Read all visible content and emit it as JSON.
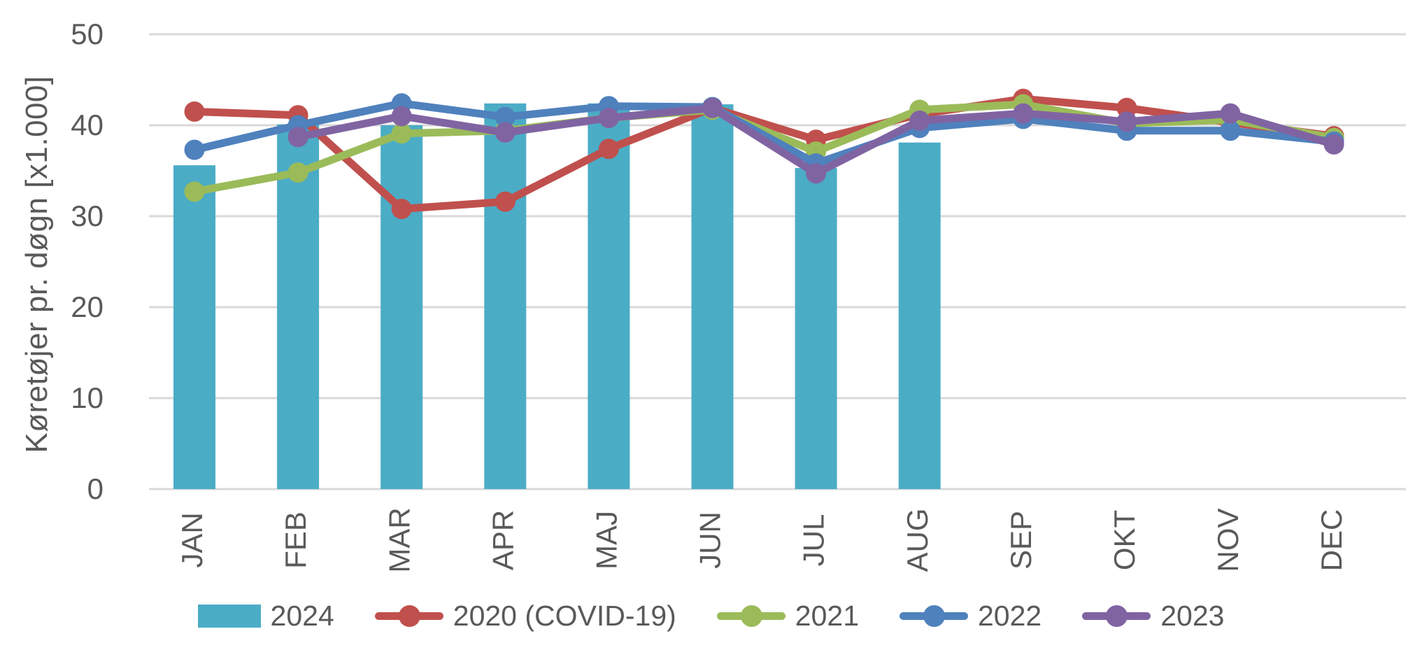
{
  "chart_data": {
    "type": "combo",
    "title": "",
    "xlabel": "",
    "ylabel": "Køretøjer pr. døgn [x1.000]",
    "ylim": [
      0,
      50
    ],
    "yticks": [
      0,
      10,
      20,
      30,
      40,
      50
    ],
    "grid": true,
    "legend_position": "bottom",
    "categories": [
      "JAN",
      "FEB",
      "MAR",
      "APR",
      "MAJ",
      "JUN",
      "JUL",
      "AUG",
      "SEP",
      "OKT",
      "NOV",
      "DEC"
    ],
    "series": [
      {
        "name": "2024",
        "type": "bar",
        "color": "#4BACC6",
        "values": [
          35.6,
          40.1,
          40.0,
          42.4,
          42.4,
          42.3,
          35.3,
          38.1,
          null,
          null,
          null,
          null
        ]
      },
      {
        "name": "2020 (COVID-19)",
        "type": "line",
        "color": "#C0504D",
        "values": [
          41.5,
          41.1,
          30.8,
          31.6,
          37.4,
          41.9,
          38.4,
          41.2,
          42.9,
          41.9,
          40.3,
          38.8
        ]
      },
      {
        "name": "2021",
        "type": "line",
        "color": "#9BBB59",
        "values": [
          32.7,
          34.8,
          39.1,
          39.4,
          40.8,
          41.7,
          37.1,
          41.7,
          42.3,
          40.2,
          40.6,
          38.6
        ]
      },
      {
        "name": "2022",
        "type": "line",
        "color": "#4F81BD",
        "values": [
          37.3,
          40.0,
          42.4,
          40.9,
          42.1,
          42.0,
          35.8,
          39.7,
          40.7,
          39.4,
          39.4,
          38.2
        ]
      },
      {
        "name": "2023",
        "type": "line",
        "color": "#8064A2",
        "values": [
          null,
          38.7,
          41.0,
          39.2,
          40.8,
          41.9,
          34.7,
          40.5,
          41.3,
          40.4,
          41.3,
          37.9
        ]
      }
    ],
    "styles": {
      "grid_color": "#D9D9D9",
      "text_color": "#595959",
      "background": "#FFFFFF"
    }
  }
}
